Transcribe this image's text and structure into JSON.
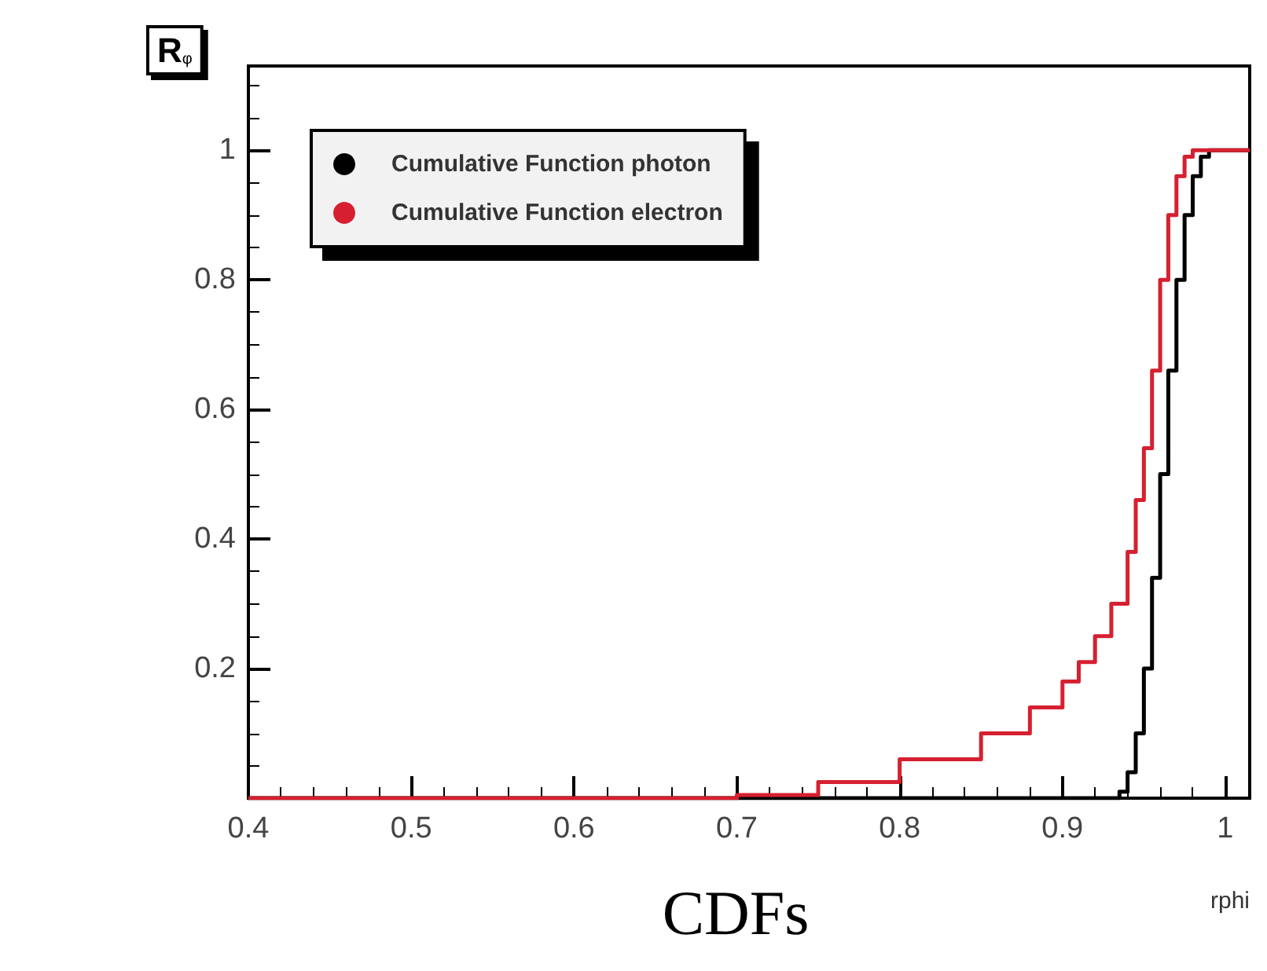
{
  "chart_data": {
    "type": "step",
    "title": "CDFs",
    "xlabel": "rphi",
    "ylabel": "R$_{φ}$",
    "xlim": [
      0.4,
      1.015
    ],
    "ylim": [
      0,
      1.13
    ],
    "xticks": [
      0.4,
      0.5,
      0.6,
      0.7,
      0.8,
      0.9,
      1
    ],
    "yticks": [
      0.2,
      0.4,
      0.6,
      0.8,
      1
    ],
    "grid": false,
    "legend": "top left",
    "series": [
      {
        "name": "Cumulative Function photon",
        "color": "#000000",
        "x": [
          0.4,
          0.93,
          0.935,
          0.94,
          0.945,
          0.95,
          0.955,
          0.96,
          0.965,
          0.97,
          0.975,
          0.98,
          0.985,
          0.99,
          1.015
        ],
        "values": [
          0,
          0,
          0.01,
          0.04,
          0.1,
          0.2,
          0.34,
          0.5,
          0.66,
          0.8,
          0.9,
          0.96,
          0.99,
          1,
          1
        ]
      },
      {
        "name": "Cumulative Function electron",
        "color": "#d62030",
        "x": [
          0.4,
          0.65,
          0.7,
          0.75,
          0.8,
          0.85,
          0.88,
          0.9,
          0.91,
          0.92,
          0.93,
          0.94,
          0.945,
          0.95,
          0.955,
          0.96,
          0.965,
          0.97,
          0.975,
          0.98,
          1.015
        ],
        "values": [
          0,
          0,
          0.005,
          0.025,
          0.06,
          0.1,
          0.14,
          0.18,
          0.21,
          0.25,
          0.3,
          0.38,
          0.46,
          0.54,
          0.66,
          0.8,
          0.9,
          0.96,
          0.99,
          1,
          1
        ]
      }
    ]
  }
}
